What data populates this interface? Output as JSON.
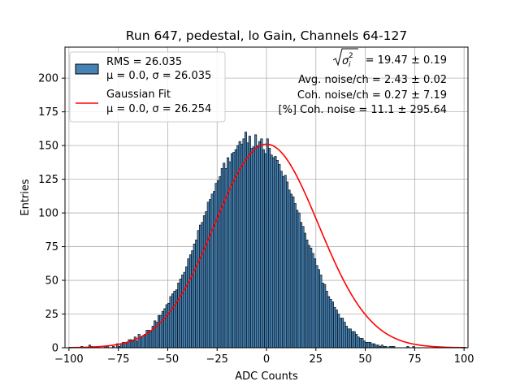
{
  "chart_data": {
    "type": "bar",
    "title": "Run 647, pedestal, lo Gain, Channels 64-127",
    "xlabel": "ADC Counts",
    "ylabel": "Entries",
    "xlim": [
      -102,
      102
    ],
    "ylim": [
      0,
      223
    ],
    "x_ticks": [
      -100,
      -75,
      -50,
      -25,
      0,
      25,
      50,
      75,
      100
    ],
    "y_ticks": [
      0,
      25,
      50,
      75,
      100,
      125,
      150,
      175,
      200
    ],
    "grid": true,
    "legend_position": "upper-left",
    "bin_width": 1,
    "bin_start": -100,
    "histogram": {
      "name_lines": [
        "RMS = 26.035",
        "μ = 0.0, σ = 26.035"
      ],
      "color": "#4682b4",
      "counts": [
        0,
        0,
        0,
        0,
        0,
        0,
        1,
        0,
        0,
        0,
        2,
        1,
        0,
        0,
        0,
        0,
        0,
        0,
        1,
        1,
        0,
        0,
        1,
        0,
        3,
        1,
        3,
        4,
        4,
        4,
        6,
        6,
        5,
        8,
        5,
        10,
        8,
        9,
        10,
        13,
        13,
        12,
        16,
        20,
        19,
        24,
        24,
        27,
        29,
        32,
        33,
        38,
        40,
        42,
        43,
        48,
        51,
        54,
        56,
        60,
        66,
        69,
        72,
        77,
        80,
        87,
        91,
        93,
        98,
        101,
        108,
        110,
        114,
        116,
        122,
        124,
        127,
        133,
        137,
        133,
        141,
        138,
        144,
        145,
        147,
        150,
        153,
        151,
        155,
        160,
        152,
        157,
        148,
        149,
        158,
        150,
        153,
        155,
        147,
        144,
        155,
        148,
        143,
        141,
        142,
        139,
        136,
        131,
        127,
        128,
        123,
        117,
        114,
        112,
        107,
        102,
        100,
        93,
        90,
        85,
        80,
        76,
        74,
        70,
        66,
        61,
        58,
        54,
        48,
        47,
        42,
        38,
        36,
        34,
        30,
        28,
        25,
        22,
        22,
        19,
        16,
        14,
        14,
        12,
        12,
        10,
        8,
        7,
        7,
        5,
        4,
        4,
        4,
        3,
        3,
        2,
        2,
        1,
        2,
        1,
        1,
        0,
        1,
        1,
        1,
        0,
        0,
        0,
        0,
        0,
        0,
        1,
        0,
        0,
        1,
        0,
        0,
        0,
        0,
        0,
        0,
        0,
        0,
        0,
        0,
        0,
        0,
        0,
        0,
        0,
        0,
        0,
        0,
        0,
        0,
        0,
        0,
        0,
        0,
        0,
        0
      ]
    },
    "fit": {
      "name_lines": [
        "Gaussian Fit",
        "μ = 0.0, σ = 26.254"
      ],
      "color": "#ff0000",
      "mu": 0.0,
      "sigma": 26.254,
      "amplitude": 151
    },
    "annotations": {
      "sigma_value": "= 19.47 ± 0.19",
      "avg_noise": "Avg. noise/ch = 2.43 ± 0.02",
      "coh_noise": "Coh. noise/ch = 0.27 ± 7.19",
      "pct_coh_noise": "[%] Coh. noise = 11.1 ± 295.64"
    }
  }
}
